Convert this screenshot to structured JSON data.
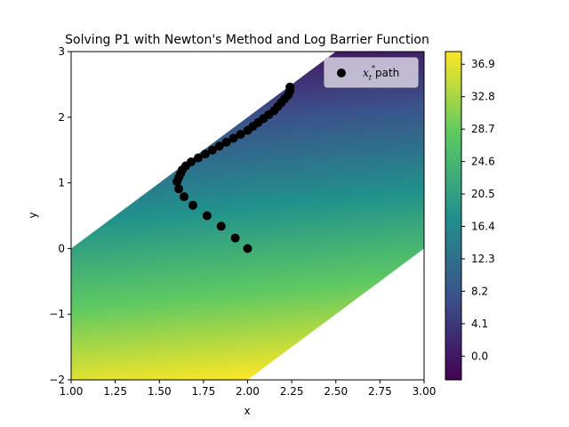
{
  "chart_data": {
    "type": "scatter",
    "title": "Solving P1 with Newton's Method and Log Barrier Function",
    "xlabel": "x",
    "ylabel": "y",
    "xlim": [
      1.0,
      3.0
    ],
    "ylim": [
      -2,
      3
    ],
    "xticks": [
      "1.00",
      "1.25",
      "1.50",
      "1.75",
      "2.00",
      "2.25",
      "2.50",
      "2.75",
      "3.00"
    ],
    "yticks": [
      "−2",
      "−1",
      "0",
      "1",
      "2",
      "3"
    ],
    "grid": false,
    "legend": {
      "placement": "top-right",
      "marker": "circle",
      "color": "#000000"
    },
    "series": [
      {
        "name": "path",
        "color": "#000000",
        "points": [
          [
            2.0,
            0.0
          ],
          [
            1.93,
            0.16
          ],
          [
            1.85,
            0.34
          ],
          [
            1.77,
            0.5
          ],
          [
            1.69,
            0.66
          ],
          [
            1.64,
            0.79
          ],
          [
            1.61,
            0.91
          ],
          [
            1.6,
            1.02
          ],
          [
            1.61,
            1.08
          ],
          [
            1.62,
            1.14
          ],
          [
            1.63,
            1.2
          ],
          [
            1.65,
            1.26
          ],
          [
            1.68,
            1.32
          ],
          [
            1.72,
            1.38
          ],
          [
            1.76,
            1.44
          ],
          [
            1.8,
            1.5
          ],
          [
            1.84,
            1.56
          ],
          [
            1.88,
            1.62
          ],
          [
            1.92,
            1.68
          ],
          [
            1.96,
            1.74
          ],
          [
            2.0,
            1.8
          ],
          [
            2.03,
            1.86
          ],
          [
            2.06,
            1.92
          ],
          [
            2.09,
            1.98
          ],
          [
            2.12,
            2.04
          ],
          [
            2.15,
            2.1
          ],
          [
            2.17,
            2.16
          ],
          [
            2.19,
            2.22
          ],
          [
            2.21,
            2.28
          ],
          [
            2.23,
            2.34
          ],
          [
            2.24,
            2.4
          ],
          [
            2.24,
            2.46
          ]
        ]
      }
    ],
    "heatmap": {
      "region": "band between y = 2x - 2 and y = 2x - 6, clipped to plot",
      "min": -3.0,
      "max": 38.5,
      "colormap": [
        "#440154",
        "#3b528b",
        "#21918c",
        "#5ec962",
        "#fde725"
      ]
    },
    "colorbar": {
      "ticks": [
        36.9,
        32.8,
        28.7,
        24.6,
        20.5,
        16.4,
        12.3,
        8.2,
        4.1,
        0.0
      ],
      "tick_labels": [
        "36.9",
        "32.8",
        "28.7",
        "24.6",
        "20.5",
        "16.4",
        "12.3",
        "8.2",
        "4.1",
        "0.0"
      ]
    }
  }
}
